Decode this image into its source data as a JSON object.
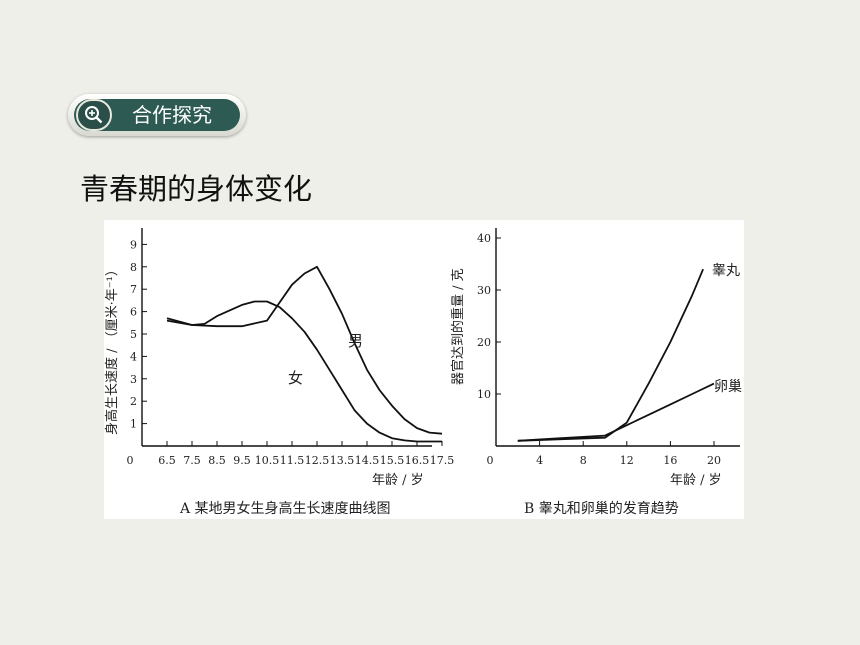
{
  "section": {
    "badge_label": "合作探究",
    "badge_icon": "magnifier-plus-icon"
  },
  "page": {
    "heading": "青春期的身体变化"
  },
  "chart_data": [
    {
      "type": "line",
      "title": "A 某地男女生身高生长速度曲线图",
      "xlabel": "年龄 / 岁",
      "ylabel": "身高生长速度 / （厘米·年⁻¹）",
      "x_ticks": [
        "0",
        "6.5",
        "7.5",
        "8.5",
        "9.5",
        "10.5",
        "11.5",
        "12.5",
        "13.5",
        "14.5",
        "15.5",
        "16.5",
        "17.5"
      ],
      "y_ticks": [
        "1",
        "2",
        "3",
        "4",
        "5",
        "6",
        "7",
        "8",
        "9"
      ],
      "xlim": [
        5.5,
        17.5
      ],
      "ylim": [
        0,
        9
      ],
      "series": [
        {
          "name": "男",
          "x": [
            6.5,
            7.5,
            8.5,
            9.5,
            10.5,
            11.0,
            11.5,
            12.0,
            12.5,
            13.0,
            13.5,
            14.0,
            14.5,
            15.0,
            15.5,
            16.0,
            16.5,
            17.0,
            17.5
          ],
          "y": [
            5.6,
            5.4,
            5.35,
            5.35,
            5.6,
            6.4,
            7.2,
            7.7,
            8.0,
            7.0,
            5.9,
            4.6,
            3.4,
            2.5,
            1.8,
            1.2,
            0.8,
            0.6,
            0.55
          ]
        },
        {
          "name": "女",
          "x": [
            6.5,
            7.5,
            8.0,
            8.5,
            9.5,
            10.0,
            10.5,
            11.0,
            11.5,
            12.0,
            12.5,
            13.0,
            13.5,
            14.0,
            14.5,
            15.0,
            15.5,
            16.0,
            16.5,
            17.0,
            17.5
          ],
          "y": [
            5.7,
            5.4,
            5.45,
            5.8,
            6.3,
            6.45,
            6.45,
            6.2,
            5.7,
            5.1,
            4.3,
            3.4,
            2.5,
            1.6,
            1.0,
            0.6,
            0.35,
            0.25,
            0.2,
            0.2,
            0.2
          ]
        }
      ],
      "labels": {
        "male": "男",
        "female": "女"
      }
    },
    {
      "type": "line",
      "title": "B 睾丸和卵巢的发育趋势",
      "xlabel": "年龄 / 岁",
      "ylabel": "器官达到的重量 / 克",
      "x_ticks": [
        "0",
        "4",
        "8",
        "12",
        "16",
        "20"
      ],
      "y_ticks": [
        "10",
        "20",
        "30",
        "40"
      ],
      "xlim": [
        0,
        22
      ],
      "ylim": [
        0,
        40
      ],
      "series": [
        {
          "name": "睾丸",
          "x": [
            2,
            6,
            10,
            12,
            14,
            16,
            18,
            19
          ],
          "y": [
            1,
            1.3,
            1.6,
            4.5,
            12,
            20,
            29,
            34
          ]
        },
        {
          "name": "卵巢",
          "x": [
            2,
            6,
            10,
            12,
            14,
            16,
            18,
            20
          ],
          "y": [
            1,
            1.5,
            2,
            4,
            6,
            8,
            10,
            12
          ]
        }
      ],
      "labels": {
        "testis": "睾丸",
        "ovary": "卵巢"
      }
    }
  ]
}
